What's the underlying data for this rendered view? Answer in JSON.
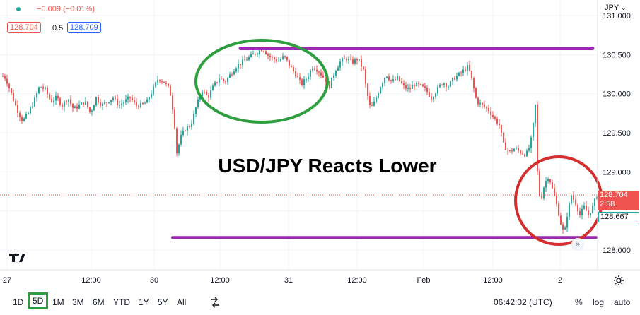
{
  "header": {
    "change": "−0.009 (−0.01%)",
    "bid": "128.704",
    "spread": "0.5",
    "ask": "128.709",
    "currency_menu": "JPY"
  },
  "colors": {
    "up_candle": "#26a69a",
    "down_candle": "#ef5350",
    "resistance_line": "#9c27b0",
    "support_line": "#9c27b0",
    "green_circle": "#2e9e3e",
    "red_circle": "#d32f2f",
    "last_price_bg": "#ef5350",
    "bid_text": "#ef5350",
    "ask_text": "#2962ff",
    "low_tag": "#26a69a",
    "highlight_box": "#2e9e3e"
  },
  "chart_data": {
    "type": "candlestick",
    "title": "USD/JPY Reacts Lower",
    "x_ticks": [
      "27",
      "12:00",
      "30",
      "12:00",
      "31",
      "12:00",
      "Feb",
      "12:00",
      "2"
    ],
    "y_ticks": [
      131.0,
      130.5,
      130.0,
      129.5,
      129.0,
      128.5,
      128.0
    ],
    "y_tick_labels": [
      "131.000",
      "130.500",
      "130.000",
      "129.500",
      "129.000",
      "",
      "128.000"
    ],
    "ylim": [
      127.95,
      131.1
    ],
    "path": [
      [
        0,
        130.25
      ],
      [
        8,
        130.2
      ],
      [
        16,
        130.0
      ],
      [
        24,
        129.8
      ],
      [
        32,
        129.65
      ],
      [
        40,
        129.75
      ],
      [
        48,
        129.9
      ],
      [
        56,
        130.1
      ],
      [
        64,
        130.05
      ],
      [
        72,
        129.9
      ],
      [
        80,
        129.95
      ],
      [
        88,
        129.85
      ],
      [
        96,
        129.95
      ],
      [
        104,
        129.8
      ],
      [
        112,
        129.85
      ],
      [
        120,
        129.9
      ],
      [
        128,
        129.75
      ],
      [
        136,
        129.95
      ],
      [
        144,
        129.85
      ],
      [
        152,
        129.9
      ],
      [
        160,
        129.95
      ],
      [
        168,
        129.85
      ],
      [
        176,
        129.9
      ],
      [
        184,
        129.95
      ],
      [
        192,
        129.85
      ],
      [
        200,
        129.85
      ],
      [
        208,
        129.9
      ],
      [
        216,
        130.05
      ],
      [
        224,
        130.2
      ],
      [
        232,
        130.15
      ],
      [
        240,
        130.05
      ],
      [
        246,
        129.7
      ],
      [
        250,
        129.25
      ],
      [
        256,
        129.45
      ],
      [
        262,
        129.55
      ],
      [
        270,
        129.6
      ],
      [
        278,
        129.85
      ],
      [
        286,
        130.05
      ],
      [
        294,
        129.95
      ],
      [
        302,
        130.1
      ],
      [
        310,
        130.2
      ],
      [
        318,
        130.15
      ],
      [
        326,
        130.25
      ],
      [
        334,
        130.35
      ],
      [
        342,
        130.4
      ],
      [
        350,
        130.45
      ],
      [
        358,
        130.5
      ],
      [
        366,
        130.55
      ],
      [
        372,
        130.58
      ],
      [
        378,
        130.5
      ],
      [
        386,
        130.45
      ],
      [
        394,
        130.42
      ],
      [
        402,
        130.48
      ],
      [
        410,
        130.35
      ],
      [
        418,
        130.25
      ],
      [
        426,
        130.12
      ],
      [
        434,
        130.2
      ],
      [
        442,
        130.35
      ],
      [
        450,
        130.3
      ],
      [
        458,
        130.2
      ],
      [
        466,
        130.1
      ],
      [
        474,
        130.3
      ],
      [
        482,
        130.42
      ],
      [
        490,
        130.45
      ],
      [
        498,
        130.4
      ],
      [
        506,
        130.45
      ],
      [
        514,
        130.3
      ],
      [
        518,
        130.05
      ],
      [
        524,
        129.8
      ],
      [
        530,
        129.9
      ],
      [
        538,
        130.1
      ],
      [
        546,
        130.25
      ],
      [
        554,
        130.15
      ],
      [
        562,
        130.2
      ],
      [
        570,
        130.1
      ],
      [
        578,
        130.05
      ],
      [
        586,
        130.12
      ],
      [
        594,
        130.1
      ],
      [
        602,
        130.05
      ],
      [
        610,
        129.95
      ],
      [
        618,
        130.05
      ],
      [
        626,
        130.15
      ],
      [
        634,
        130.1
      ],
      [
        642,
        130.2
      ],
      [
        650,
        130.25
      ],
      [
        656,
        130.3
      ],
      [
        662,
        130.35
      ],
      [
        668,
        130.15
      ],
      [
        674,
        129.9
      ],
      [
        682,
        129.85
      ],
      [
        690,
        129.8
      ],
      [
        698,
        129.7
      ],
      [
        706,
        129.6
      ],
      [
        712,
        129.35
      ],
      [
        720,
        129.25
      ],
      [
        728,
        129.3
      ],
      [
        736,
        129.25
      ],
      [
        744,
        129.22
      ],
      [
        750,
        129.35
      ],
      [
        754,
        129.6
      ],
      [
        757,
        129.85
      ],
      [
        760,
        129.0
      ],
      [
        764,
        128.6
      ],
      [
        770,
        128.85
      ],
      [
        776,
        128.95
      ],
      [
        782,
        128.75
      ],
      [
        788,
        128.55
      ],
      [
        794,
        128.3
      ],
      [
        798,
        128.2
      ],
      [
        802,
        128.45
      ],
      [
        808,
        128.7
      ],
      [
        814,
        128.6
      ],
      [
        820,
        128.45
      ],
      [
        826,
        128.55
      ],
      [
        832,
        128.45
      ],
      [
        838,
        128.55
      ],
      [
        844,
        128.7
      ]
    ],
    "resistance_level": 130.58,
    "support_level": 128.16,
    "last_price": "128.704",
    "countdown": "2:58",
    "low_price": "128.667"
  },
  "bottom_bar": {
    "ranges": [
      "1D",
      "5D",
      "1M",
      "3M",
      "6M",
      "YTD",
      "1Y",
      "5Y",
      "All"
    ],
    "selected_range": "5D",
    "clock": "06:42:02 (UTC)",
    "percent": "%",
    "log": "log",
    "auto": "auto"
  },
  "icons": {
    "logo": "tradingview-logo",
    "compare": "compare-icon",
    "settings": "gear-icon",
    "dot": "status-dot-icon",
    "scroll": "scroll-right-icon"
  }
}
